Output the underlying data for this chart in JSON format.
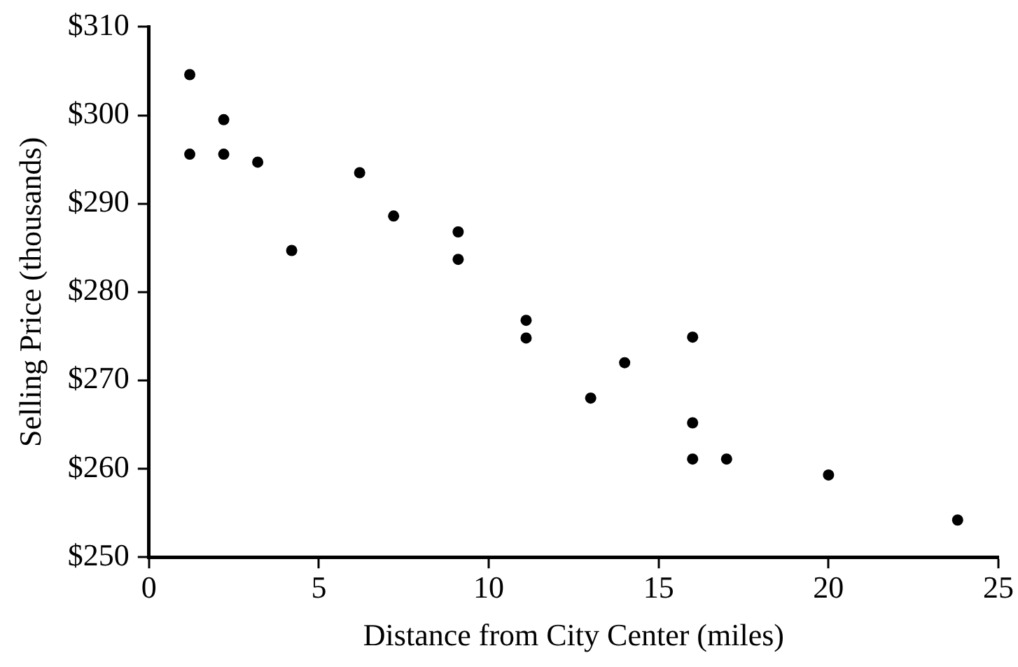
{
  "chart_data": {
    "type": "scatter",
    "xlabel": "Distance from City Center (miles)",
    "ylabel": "Selling Price (thousands)",
    "x": [
      1.2,
      2.2,
      1.2,
      2.2,
      3.2,
      6.2,
      7.2,
      4.2,
      9.1,
      9.1,
      11.1,
      11.1,
      16,
      14,
      13,
      16,
      16,
      17,
      20,
      23.8
    ],
    "values": [
      304.6,
      299.5,
      295.6,
      295.6,
      294.7,
      293.5,
      288.6,
      284.7,
      286.8,
      283.7,
      276.8,
      274.8,
      274.9,
      272,
      268,
      265.2,
      261.1,
      261.1,
      259.3,
      254.2
    ],
    "color": "#000000",
    "marker": "circle",
    "grid": false,
    "xlim": [
      0,
      25
    ],
    "xticks": [
      0,
      5,
      10,
      15,
      20,
      25
    ],
    "ylim": [
      250,
      310
    ],
    "yticks": [
      {
        "value": 250,
        "label": "$250"
      },
      {
        "value": 260,
        "label": "$260"
      },
      {
        "value": 270,
        "label": "$270"
      },
      {
        "value": 280,
        "label": "$280"
      },
      {
        "value": 290,
        "label": "$290"
      },
      {
        "value": 300,
        "label": "$300"
      },
      {
        "value": 310,
        "label": "$310"
      }
    ]
  }
}
